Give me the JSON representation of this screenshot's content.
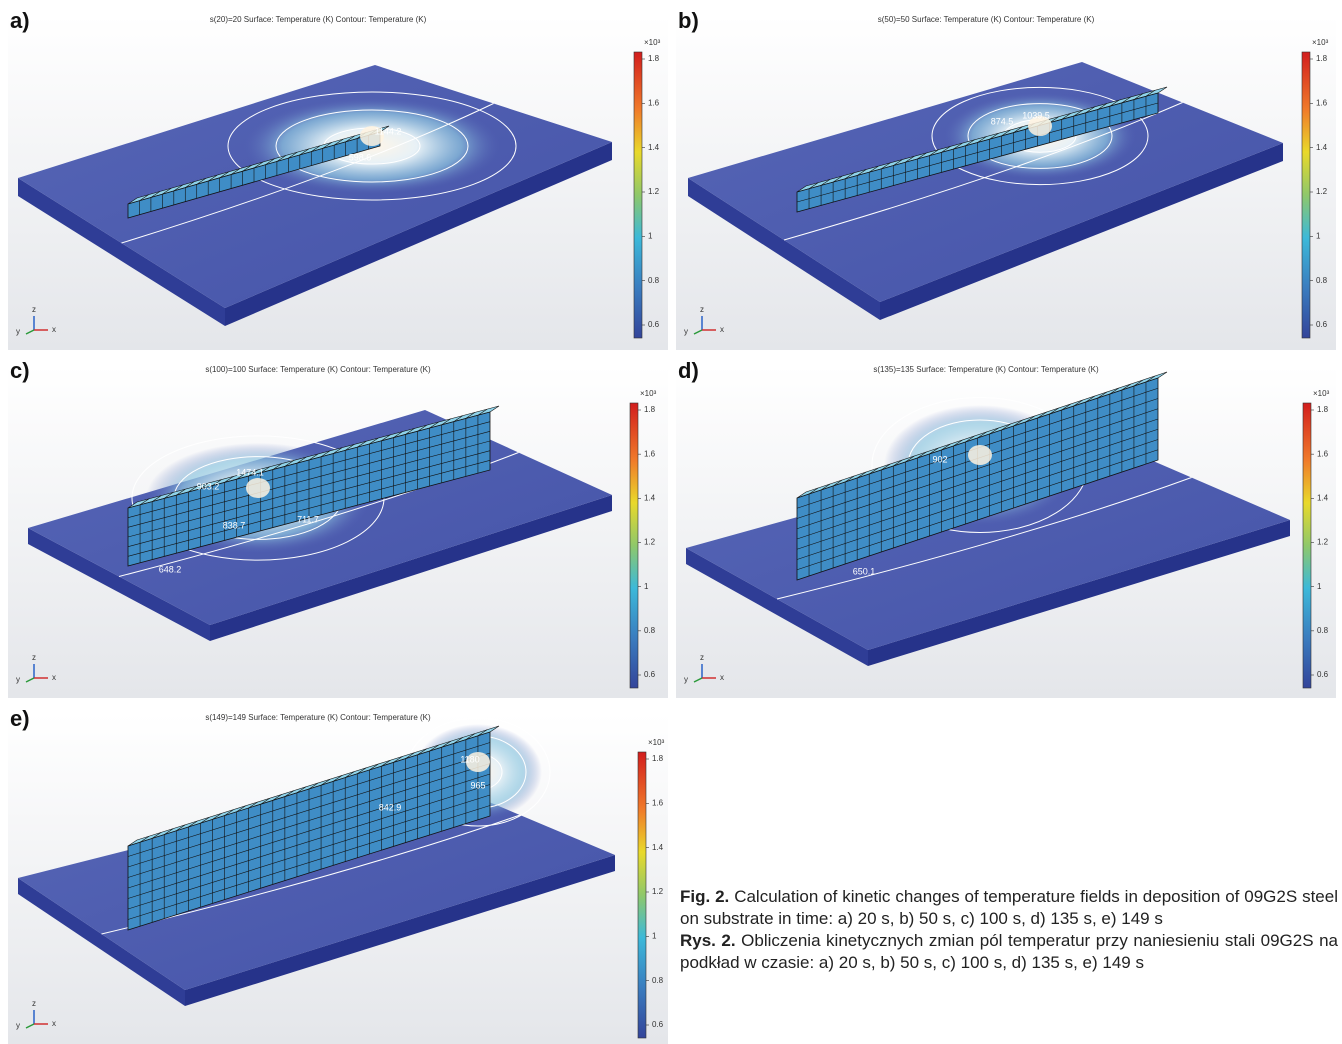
{
  "panels": [
    {
      "label": "a)",
      "title": "s(20)=20   Surface: Temperature (K)  Contour: Temperature (K)",
      "contour_labels": [
        "1144.2",
        "598.6"
      ]
    },
    {
      "label": "b)",
      "title": "s(50)=50   Surface: Temperature (K)  Contour: Temperature (K)",
      "contour_labels": [
        "874.5",
        "1039.5"
      ]
    },
    {
      "label": "c)",
      "title": "s(100)=100   Surface: Temperature (K)  Contour: Temperature (K)",
      "contour_labels": [
        "1474.1",
        "903.2",
        "838.7",
        "711.7",
        "648.2"
      ]
    },
    {
      "label": "d)",
      "title": "s(135)=135   Surface: Temperature (K)  Contour: Temperature (K)",
      "contour_labels": [
        "902",
        "650.1"
      ]
    },
    {
      "label": "e)",
      "title": "s(149)=149   Surface: Temperature (K)  Contour: Temperature (K)",
      "contour_labels": [
        "1180",
        "965",
        "842.9"
      ]
    }
  ],
  "colorbar": {
    "unit": "×10³",
    "ticks": [
      1.8,
      1.6,
      1.4,
      1.2,
      1,
      0.8,
      0.6
    ]
  },
  "axes": {
    "x": "x",
    "y": "y",
    "z": "z"
  },
  "caption": {
    "en_label": "Fig. 2.",
    "en_text": "Calculation of kinetic changes of temperature fields in deposition of 09G2S steel on substrate in time: a) 20 s, b) 50 s, c) 100 s, d) 135 s, e) 149 s",
    "pl_label": "Rys. 2.",
    "pl_text": "Obliczenia kinetycznych zmian pól temperatur przy naniesieniu stali 09G2S na podkład w czasie: a) 20 s, b) 50 s, c) 100 s, d) 135 s, e) 149 s"
  }
}
